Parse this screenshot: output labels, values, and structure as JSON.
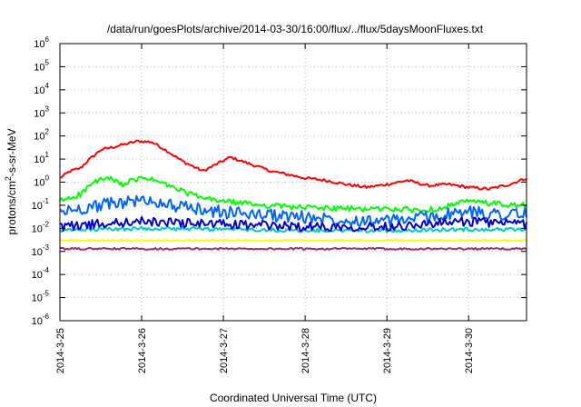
{
  "chart_data": {
    "type": "line",
    "title": "/data/run/goesPlots/archive/2014-03-30/16:00/flux/../flux/5daysMoonFluxes.txt",
    "xlabel": "Coordinated Universal Time (UTC)",
    "ylabel_parts": [
      "protons/cm",
      "2",
      "-s-sr-MeV"
    ],
    "y_scale": "log",
    "ylim": [
      1e-06,
      1000000.0
    ],
    "y_ticks": [
      {
        "base": "10",
        "exp": "-6"
      },
      {
        "base": "10",
        "exp": "-5"
      },
      {
        "base": "10",
        "exp": "-4"
      },
      {
        "base": "10",
        "exp": "-3"
      },
      {
        "base": "10",
        "exp": "-2"
      },
      {
        "base": "10",
        "exp": "-1"
      },
      {
        "base": "10",
        "exp": "0"
      },
      {
        "base": "10",
        "exp": "1"
      },
      {
        "base": "10",
        "exp": "2"
      },
      {
        "base": "10",
        "exp": "3"
      },
      {
        "base": "10",
        "exp": "4"
      },
      {
        "base": "10",
        "exp": "5"
      },
      {
        "base": "10",
        "exp": "6"
      }
    ],
    "xlim": [
      "2014-03-25 00:00",
      "2014-03-30 17:00"
    ],
    "x_ticks": [
      "2014-3-25",
      "2014-3-26",
      "2014-3-27",
      "2014-3-28",
      "2014-3-29",
      "2014-3-30"
    ],
    "grid": true,
    "legend": "none",
    "series": [
      {
        "color": "#ff0000",
        "noise": 0.06,
        "points": [
          [
            "2014-03-25 00:00",
            1.5
          ],
          [
            "2014-03-25 03:00",
            3
          ],
          [
            "2014-03-25 06:00",
            4
          ],
          [
            "2014-03-25 08:00",
            8
          ],
          [
            "2014-03-25 12:00",
            25
          ],
          [
            "2014-03-25 18:00",
            40
          ],
          [
            "2014-03-25 23:00",
            60
          ],
          [
            "2014-03-26 03:00",
            55
          ],
          [
            "2014-03-26 07:00",
            25
          ],
          [
            "2014-03-26 12:00",
            8
          ],
          [
            "2014-03-26 18:00",
            3
          ],
          [
            "2014-03-26 22:00",
            6
          ],
          [
            "2014-03-27 02:00",
            12
          ],
          [
            "2014-03-27 08:00",
            6
          ],
          [
            "2014-03-27 14:00",
            3
          ],
          [
            "2014-03-27 20:00",
            2
          ],
          [
            "2014-03-28 00:00",
            1.5
          ],
          [
            "2014-03-28 06:00",
            1.2
          ],
          [
            "2014-03-28 12:00",
            0.8
          ],
          [
            "2014-03-28 18:00",
            0.6
          ],
          [
            "2014-03-29 00:00",
            0.8
          ],
          [
            "2014-03-29 06:00",
            1.2
          ],
          [
            "2014-03-29 12:00",
            0.7
          ],
          [
            "2014-03-29 18:00",
            0.8
          ],
          [
            "2014-03-30 00:00",
            0.6
          ],
          [
            "2014-03-30 06:00",
            0.5
          ],
          [
            "2014-03-30 12:00",
            0.8
          ],
          [
            "2014-03-30 17:00",
            1.5
          ]
        ]
      },
      {
        "color": "#00ff00",
        "noise": 0.12,
        "points": [
          [
            "2014-03-25 00:00",
            0.15
          ],
          [
            "2014-03-25 06:00",
            0.3
          ],
          [
            "2014-03-25 10:00",
            1
          ],
          [
            "2014-03-25 14:00",
            1.5
          ],
          [
            "2014-03-25 18:00",
            0.8
          ],
          [
            "2014-03-25 22:00",
            1.2
          ],
          [
            "2014-03-26 01:00",
            1.6
          ],
          [
            "2014-03-26 06:00",
            0.9
          ],
          [
            "2014-03-26 12:00",
            0.4
          ],
          [
            "2014-03-26 18:00",
            0.2
          ],
          [
            "2014-03-27 00:00",
            0.15
          ],
          [
            "2014-03-27 12:00",
            0.1
          ],
          [
            "2014-03-28 00:00",
            0.08
          ],
          [
            "2014-03-28 12:00",
            0.07
          ],
          [
            "2014-03-29 00:00",
            0.07
          ],
          [
            "2014-03-29 12:00",
            0.06
          ],
          [
            "2014-03-30 00:00",
            0.15
          ],
          [
            "2014-03-30 12:00",
            0.1
          ],
          [
            "2014-03-30 17:00",
            0.1
          ]
        ]
      },
      {
        "color": "#0066ff",
        "noise": 0.28,
        "points": [
          [
            "2014-03-25 00:00",
            0.05
          ],
          [
            "2014-03-25 12:00",
            0.1
          ],
          [
            "2014-03-25 20:00",
            0.15
          ],
          [
            "2014-03-26 04:00",
            0.15
          ],
          [
            "2014-03-26 12:00",
            0.08
          ],
          [
            "2014-03-27 00:00",
            0.05
          ],
          [
            "2014-03-28 00:00",
            0.03
          ],
          [
            "2014-03-29 00:00",
            0.02
          ],
          [
            "2014-03-30 00:00",
            0.05
          ],
          [
            "2014-03-30 17:00",
            0.04
          ]
        ]
      },
      {
        "color": "#00ccc0",
        "noise": 0.08,
        "points": [
          [
            "2014-03-25 00:00",
            0.008
          ],
          [
            "2014-03-26 00:00",
            0.01
          ],
          [
            "2014-03-27 00:00",
            0.009
          ],
          [
            "2014-03-28 00:00",
            0.008
          ],
          [
            "2014-03-29 00:00",
            0.008
          ],
          [
            "2014-03-30 00:00",
            0.009
          ],
          [
            "2014-03-30 17:00",
            0.009
          ]
        ]
      },
      {
        "color": "#0000cc",
        "noise": 0.2,
        "points": [
          [
            "2014-03-25 00:00",
            0.012
          ],
          [
            "2014-03-26 00:00",
            0.02
          ],
          [
            "2014-03-27 00:00",
            0.015
          ],
          [
            "2014-03-28 00:00",
            0.012
          ],
          [
            "2014-03-29 00:00",
            0.012
          ],
          [
            "2014-03-30 00:00",
            0.02
          ],
          [
            "2014-03-30 17:00",
            0.015
          ]
        ]
      },
      {
        "color": "#ffff00",
        "noise": 0.03,
        "points": [
          [
            "2014-03-25 00:00",
            0.003
          ],
          [
            "2014-03-30 17:00",
            0.003
          ]
        ]
      },
      {
        "color": "#993366",
        "noise": 0.04,
        "points": [
          [
            "2014-03-25 00:00",
            0.0013
          ],
          [
            "2014-03-30 17:00",
            0.0013
          ]
        ]
      }
    ]
  }
}
